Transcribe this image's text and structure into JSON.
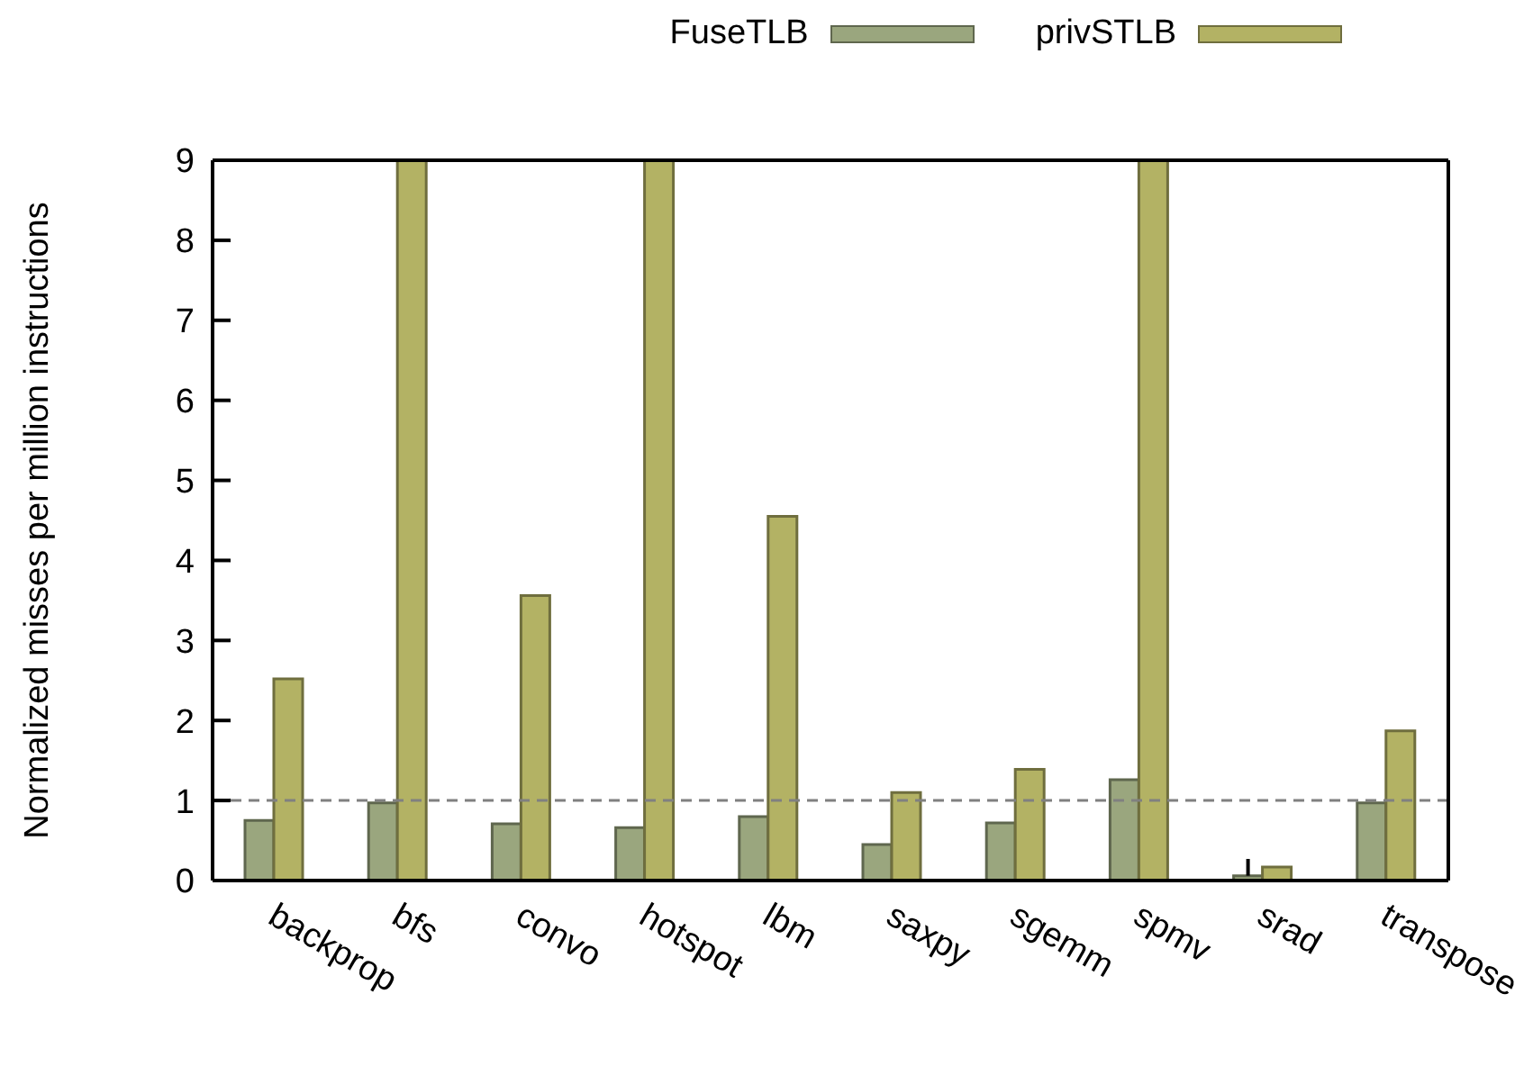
{
  "chart_data": {
    "type": "bar",
    "ylabel": "Normalized misses per million instructions",
    "categories": [
      "backprop",
      "bfs",
      "convo",
      "hotspot",
      "lbm",
      "saxpy",
      "sgemm",
      "spmv",
      "srad",
      "transpose"
    ],
    "series": [
      {
        "name": "FuseTLB",
        "color": "#9aa67e",
        "values": [
          0.75,
          0.97,
          0.71,
          0.66,
          0.8,
          0.45,
          0.72,
          1.26,
          0.06,
          0.97
        ],
        "errors": [
          null,
          null,
          null,
          null,
          null,
          null,
          null,
          null,
          [
            0.06,
            0.27
          ],
          null
        ]
      },
      {
        "name": "privSTLB",
        "color": "#b3b264",
        "values": [
          2.52,
          9,
          3.56,
          9,
          4.55,
          1.1,
          1.39,
          9,
          0.17,
          1.87
        ]
      }
    ],
    "ylim": [
      0,
      9
    ],
    "yticks": [
      0,
      1,
      2,
      3,
      4,
      5,
      6,
      7,
      8,
      9
    ],
    "grid": false,
    "legend": "top right",
    "ref_lines": [
      {
        "axis": "y",
        "value": 1,
        "color": "#808080",
        "line_style": "dashed"
      }
    ]
  }
}
